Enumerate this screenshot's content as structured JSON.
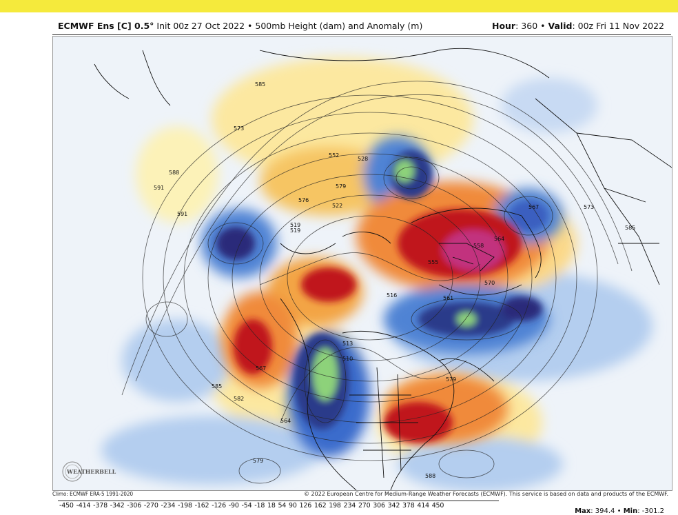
{
  "header": {
    "model": "ECMWF Ens [C] 0.5°",
    "init": "Init 00z 27 Oct 2022",
    "field": "500mb Height (dam) and Anomaly (m)",
    "hour_label": "Hour",
    "hour_value": "360",
    "valid_label": "Valid",
    "valid_value": "00z Fri 11 Nov 2022"
  },
  "map": {
    "contour_labels": [
      "585",
      "588",
      "591",
      "573",
      "552",
      "579",
      "576",
      "528",
      "522",
      "519",
      "516",
      "513",
      "510",
      "564",
      "567",
      "582",
      "555",
      "570",
      "561",
      "579",
      "585",
      "567",
      "558",
      "564",
      "573",
      "579",
      "519",
      "585",
      "588",
      "591"
    ],
    "colors": {
      "positive_strong": "#b8001e",
      "positive_mid": "#ee6a1a",
      "positive_weak": "#fde48c",
      "negative_weak": "#a9c7ee",
      "negative_mid": "#2a63c4",
      "negative_strong": "#241a6b",
      "extreme_positive": "#c2337e",
      "extreme_negative": "#8dd27a"
    },
    "logo_text": "WEATHERBELL"
  },
  "footer": {
    "climo": "Climo: ECMWF ERA-5 1991-2020",
    "copyright": "© 2022 European Centre for Medium-Range Weather Forecasts (ECMWF). This service is based on data and products of the ECMWF.",
    "scale": "-450 -414 -378 -342 -306 -270 -234 -198 -162 -126 -90 -54 -18 18 54 90 126 162 198 234 270 306 342 378 414 450",
    "max_label": "Max",
    "max_value": "394.4",
    "min_label": "Min",
    "min_value": "-301.2"
  }
}
